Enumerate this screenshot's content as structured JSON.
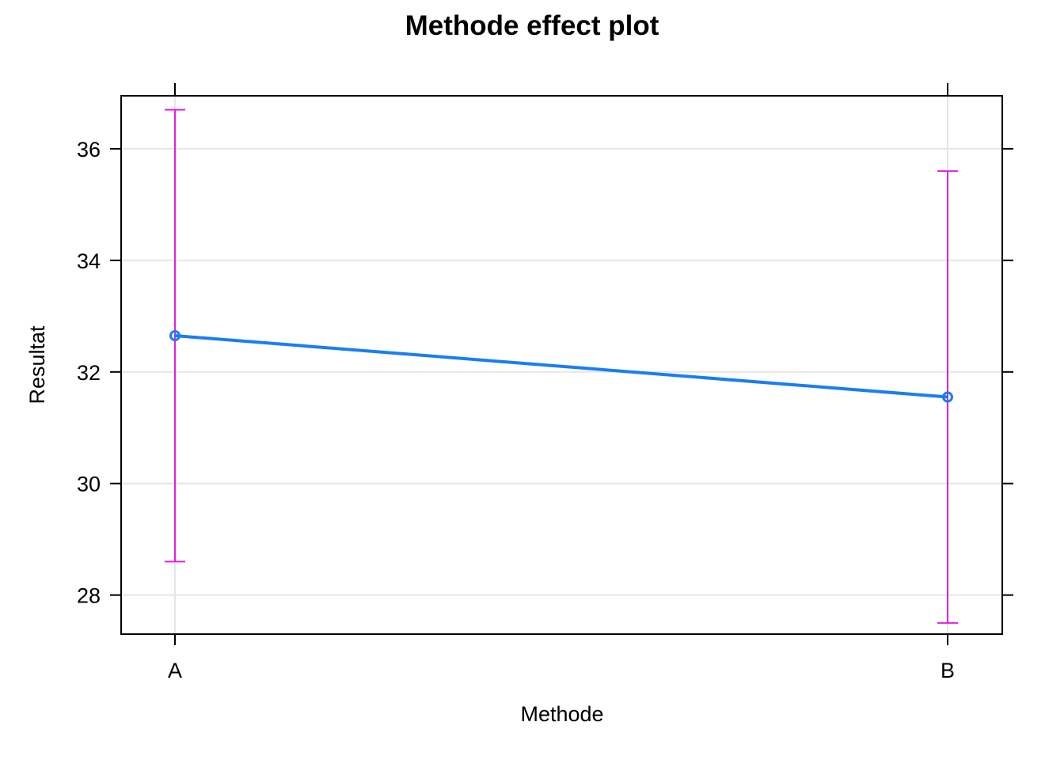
{
  "chart_data": {
    "type": "line",
    "title": "Methode effect plot",
    "xlabel": "Methode",
    "ylabel": "Resultat",
    "categories": [
      "A",
      "B"
    ],
    "series": [
      {
        "values": [
          32.65,
          31.55
        ],
        "lower": [
          28.6,
          27.5
        ],
        "upper": [
          36.7,
          35.6
        ]
      }
    ],
    "yticks": [
      28,
      30,
      32,
      34,
      36
    ],
    "ylim": [
      27.3,
      36.95
    ],
    "grid": true,
    "colors": {
      "line": "#1a7ef2",
      "ci": "#e020e0",
      "grid": "#e6e6e6",
      "frame": "#000000"
    }
  }
}
